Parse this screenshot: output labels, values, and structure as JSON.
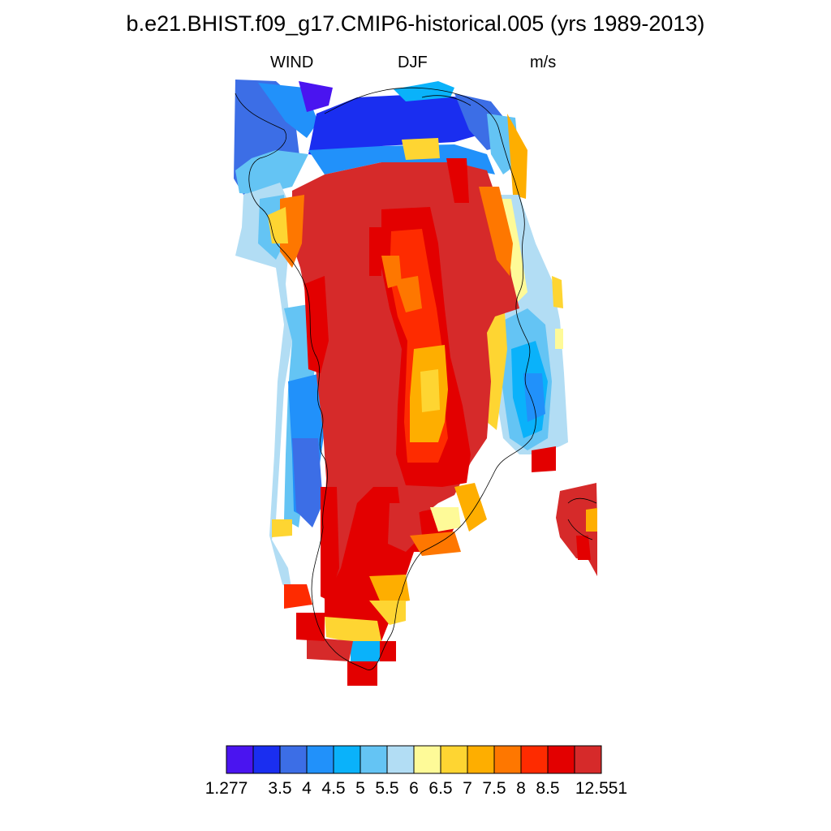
{
  "title": "b.e21.BHIST.f09_g17.CMIP6-historical.005 (yrs 1989-2013)",
  "subtitle": {
    "left": "WIND",
    "center": "DJF",
    "right": "m/s"
  },
  "colorbar": {
    "colors": [
      "#4a14f0",
      "#1a2ef0",
      "#3c6ee6",
      "#2191fa",
      "#0ab2fa",
      "#64c4f4",
      "#b2ddf4",
      "#fefa98",
      "#fed532",
      "#feae00",
      "#fe7700",
      "#fe2b00",
      "#e30000",
      "#d62a2a"
    ],
    "labels": [
      "1.277",
      "3.5",
      "4",
      "4.5",
      "5",
      "5.5",
      "6",
      "6.5",
      "7",
      "7.5",
      "8",
      "8.5",
      "12.551"
    ]
  },
  "map": {
    "region": "Greenland",
    "wind_speed_classes": {
      "ice_sheet_interior": "12.551",
      "central_ridge": "7.5-8.5",
      "coastal_margins": "3.5-6",
      "northern_ocean": "3.5-4"
    }
  }
}
